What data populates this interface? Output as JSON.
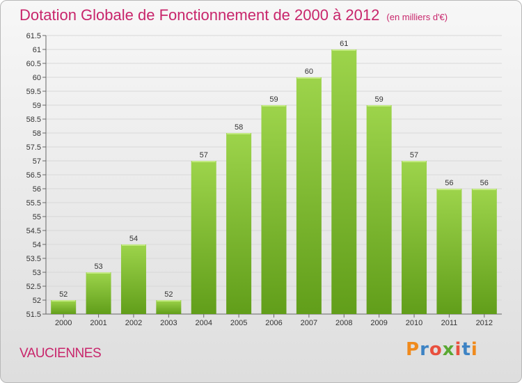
{
  "header": {
    "title": "Dotation Globale de Fonctionnement de 2000 à 2012",
    "subtitle": "(en milliers d'€)"
  },
  "commune": "VAUCIENNES",
  "logo": {
    "letters": [
      "P",
      "r",
      "o",
      "x",
      "i",
      "t",
      "i"
    ],
    "colors": [
      "#f08a1c",
      "#3d83c4",
      "#e9503e",
      "#5aa832",
      "#e9503e",
      "#3d83c4",
      "#f08a1c"
    ]
  },
  "chart_data": {
    "type": "bar",
    "title": "Dotation Globale de Fonctionnement de 2000 à 2012",
    "subtitle": "(en milliers d'€)",
    "categories": [
      "2000",
      "2001",
      "2002",
      "2003",
      "2004",
      "2005",
      "2006",
      "2007",
      "2008",
      "2009",
      "2010",
      "2011",
      "2012"
    ],
    "values": [
      52,
      53,
      54,
      52,
      57,
      58,
      59,
      60,
      61,
      59,
      57,
      56,
      56
    ],
    "value_labels": [
      "52",
      "53",
      "54",
      "52",
      "57",
      "58",
      "59",
      "60",
      "61",
      "59",
      "57",
      "56",
      "56"
    ],
    "yticks": [
      "51.5",
      "52",
      "52.5",
      "53",
      "53.5",
      "54",
      "54.5",
      "55",
      "55.5",
      "56",
      "56.5",
      "57",
      "57.5",
      "58",
      "58.5",
      "59",
      "59.5",
      "60",
      "60.5",
      "61",
      "61.5"
    ],
    "ylim": [
      51.5,
      61.5
    ],
    "grid": true,
    "bar_color": "#7cbf2a"
  }
}
